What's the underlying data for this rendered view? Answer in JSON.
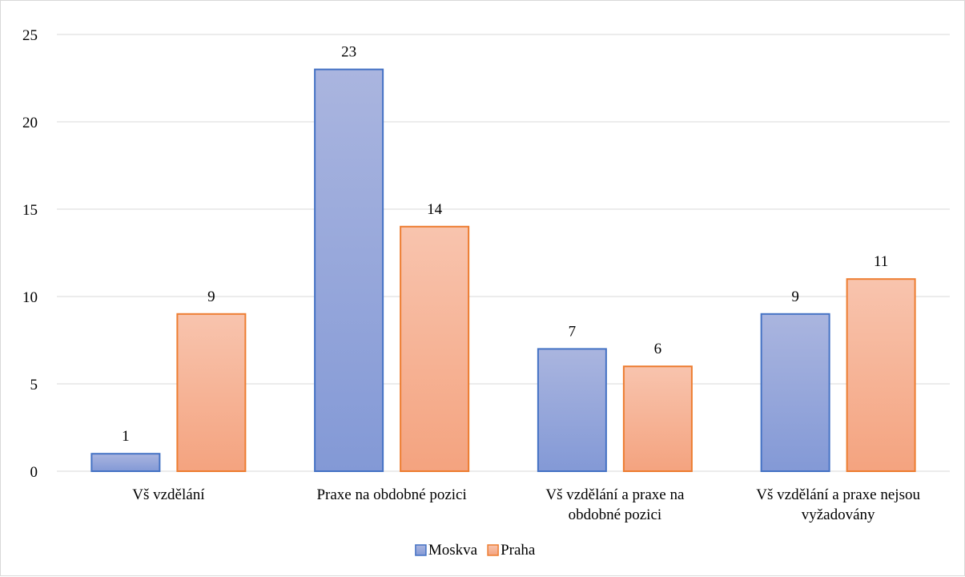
{
  "chart_data": {
    "type": "bar",
    "categories": [
      [
        "Vš vzdělání"
      ],
      [
        "Praxe na obdobné pozici"
      ],
      [
        "Vš vzdělání a praxe na",
        "obdobné pozici"
      ],
      [
        "Vš vzdělání a praxe nejsou",
        "vyžadovány"
      ]
    ],
    "series": [
      {
        "name": "Moskva",
        "values": [
          1,
          23,
          7,
          9
        ],
        "color_top": "#aab5df",
        "color_bottom": "#8399d6",
        "stroke": "#4472c4"
      },
      {
        "name": "Praha",
        "values": [
          9,
          14,
          6,
          11
        ],
        "color_top": "#f8c4ae",
        "color_bottom": "#f4a37f",
        "stroke": "#ed7d31"
      }
    ],
    "ylim": [
      0,
      25
    ],
    "yticks": [
      0,
      5,
      10,
      15,
      20,
      25
    ],
    "grid": true,
    "legend_position": "bottom",
    "title": "",
    "xlabel": "",
    "ylabel": ""
  }
}
